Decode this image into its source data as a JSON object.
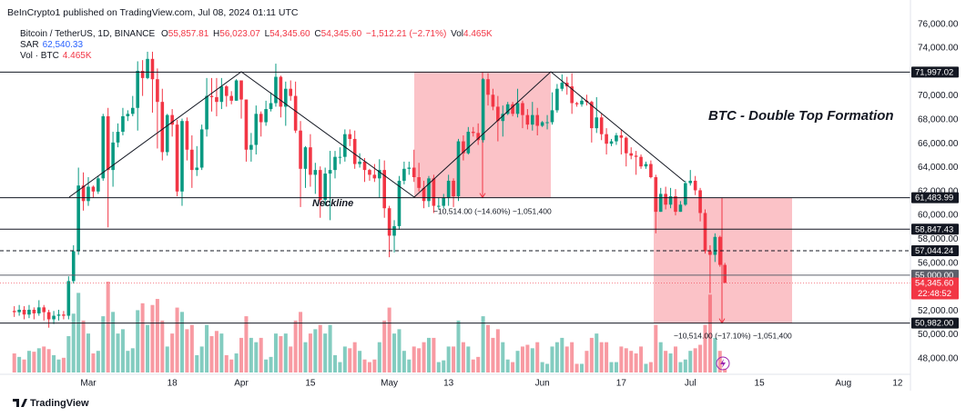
{
  "header": {
    "publisher": "BeInCrypto1 published on TradingView.com, Jul 08, 2024 01:11 UTC"
  },
  "legend": {
    "symbol": "Bitcoin / TetherUS, 1D, BINANCE",
    "items": [
      {
        "key": "O",
        "value": "55,857.81"
      },
      {
        "key": "H",
        "value": "56,023.07"
      },
      {
        "key": "L",
        "value": "54,345.60"
      },
      {
        "key": "C",
        "value": "54,345.60"
      }
    ],
    "change": "−1,512.21 (−2.71%)",
    "volume_key": "Vol",
    "volume_value": "4.465K",
    "sar_key": "SAR",
    "sar_value": "62,540.33",
    "vol_key": "Vol · BTC",
    "vol_value": "4.465K"
  },
  "annotations": {
    "pattern": "BTC - Double Top Formation",
    "neckline": "Neckline",
    "measure_1": "−10,514.00 (−14.60%) −1,051,400",
    "measure_2": "−10,514.00 (−17.10%) −1,051,400"
  },
  "footer": {
    "brand": "TradingView"
  },
  "chart_data": {
    "type": "candlestick",
    "up_color": "#089981",
    "down_color": "#f23645",
    "ylim": [
      46850,
      76510
    ],
    "yticks": [
      {
        "value": 76000,
        "label": "76,000.00"
      },
      {
        "value": 74000,
        "label": "74,000.00"
      },
      {
        "value": 70000,
        "label": "70,000.00"
      },
      {
        "value": 68000,
        "label": "68,000.00"
      },
      {
        "value": 66000,
        "label": "66,000.00"
      },
      {
        "value": 64000,
        "label": "64,000.00"
      },
      {
        "value": 62000,
        "label": "62,000.00"
      },
      {
        "value": 60000,
        "label": "60,000.00"
      },
      {
        "value": 58000,
        "label": "58,000.00"
      },
      {
        "value": 56000,
        "label": "56,000.00"
      },
      {
        "value": 52000,
        "label": "52,000.00"
      },
      {
        "value": 50000,
        "label": "50,000.00"
      },
      {
        "value": 48000,
        "label": "48,000.00"
      }
    ],
    "levels": [
      {
        "value": 71997.02,
        "label": "71,997.02",
        "line": "solid",
        "color": "#131722"
      },
      {
        "value": 61483.99,
        "label": "61,483.99",
        "line": "solid",
        "color": "#131722"
      },
      {
        "value": 58847.43,
        "label": "58,847.43",
        "line": "solid",
        "color": "#131722"
      },
      {
        "value": 57044.24,
        "label": "57,044.24",
        "line": "dashed",
        "color": "#131722"
      },
      {
        "value": 55000,
        "label": "55,000.00",
        "line": "solid",
        "color": "#5d606b"
      },
      {
        "value": 50982,
        "label": "50,982.00",
        "line": "solid",
        "color": "#131722"
      }
    ],
    "last": {
      "value": 54345.6,
      "label": "54,345.60",
      "countdown": "22:48:52",
      "color": "#f23645"
    },
    "categories": [
      null,
      null,
      null,
      null,
      null,
      null,
      null,
      null,
      null,
      null,
      null,
      null,
      null,
      null,
      null,
      "Mar",
      null,
      null,
      null,
      null,
      null,
      null,
      null,
      null,
      null,
      null,
      null,
      null,
      null,
      null,
      null,
      null,
      "18",
      null,
      null,
      null,
      null,
      null,
      null,
      null,
      null,
      null,
      null,
      null,
      null,
      null,
      "Apr",
      null,
      null,
      null,
      null,
      null,
      null,
      null,
      null,
      null,
      null,
      null,
      null,
      null,
      "15",
      null,
      null,
      null,
      null,
      null,
      null,
      null,
      null,
      null,
      null,
      null,
      null,
      null,
      null,
      null,
      "May",
      null,
      null,
      null,
      null,
      null,
      null,
      null,
      null,
      null,
      null,
      null,
      "13",
      null,
      null,
      null,
      null,
      null,
      null,
      null,
      null,
      null,
      null,
      null,
      null,
      null,
      null,
      null,
      null,
      null,
      null,
      "Jun",
      null,
      null,
      null,
      null,
      null,
      null,
      null,
      null,
      null,
      null,
      null,
      null,
      null,
      null,
      null,
      "17",
      null,
      null,
      null,
      null,
      null,
      null,
      null,
      null,
      null,
      null,
      null,
      null,
      null,
      "Jul",
      null,
      null,
      null,
      null,
      null,
      null,
      null,
      null,
      null,
      null,
      null,
      null,
      null,
      "15",
      null,
      null,
      null,
      null,
      null,
      null,
      null,
      null,
      null,
      null,
      null,
      null,
      null,
      null,
      null,
      null,
      "Aug",
      null,
      null,
      null,
      null,
      null,
      null,
      null,
      null,
      null,
      null,
      "12",
      null,
      null
    ],
    "open": [
      52000,
      51900,
      52100,
      51700,
      52100,
      51800,
      52300,
      51900,
      51300,
      51600,
      51700,
      51600,
      54500,
      57000,
      62500,
      61200,
      62400,
      62000,
      63100,
      68300,
      63800,
      66100,
      67000,
      68300,
      68500,
      69000,
      72100,
      71500,
      73100,
      71400,
      69500,
      65300,
      68400,
      67600,
      62000,
      67900,
      65500,
      63800,
      64000,
      67200,
      70000,
      69900,
      69500,
      70800,
      70000,
      69600,
      71300,
      69700,
      65500,
      65900,
      68500,
      67800,
      68900,
      69400,
      71600,
      69100,
      70600,
      70000,
      67100,
      63900,
      65700,
      63400,
      63800,
      61300,
      63500,
      63800,
      64900,
      64900,
      66800,
      66400,
      64300,
      64500,
      63800,
      63400,
      63100,
      63800,
      60600,
      58300,
      59100,
      62900,
      63900,
      64000,
      63200,
      62300,
      61200,
      63100,
      60800,
      60800,
      61500,
      62900,
      61600,
      66200,
      65200,
      67000,
      66900,
      66300,
      71400,
      70100,
      69100,
      67900,
      68500,
      69300,
      68500,
      69400,
      68400,
      67600,
      68400,
      67500,
      67800,
      67800,
      68800,
      70600,
      71100,
      70800,
      69400,
      69300,
      69600,
      69500,
      67300,
      68200,
      66800,
      66000,
      66200,
      66700,
      66500,
      65200,
      65000,
      64900,
      64100,
      64300,
      63200,
      60300,
      61800,
      60900,
      61600,
      60300,
      60900,
      62700,
      62900,
      62100,
      60200,
      57000,
      56700,
      58200,
      55857.81,
      null,
      null,
      null,
      null,
      null,
      null,
      null,
      null,
      null,
      null,
      null,
      null,
      null,
      null,
      null,
      null,
      null,
      null,
      null,
      null,
      null,
      null,
      null,
      null,
      null,
      null,
      null,
      null,
      null,
      null,
      null,
      null,
      null,
      null,
      null,
      null,
      null
    ],
    "high": [
      52400,
      52500,
      52400,
      52500,
      52300,
      52900,
      52500,
      52100,
      52000,
      52100,
      52000,
      54900,
      57500,
      64000,
      63600,
      63200,
      62500,
      63300,
      68500,
      69000,
      67000,
      67700,
      69000,
      68800,
      70000,
      72900,
      73000,
      73700,
      73700,
      72300,
      70600,
      68500,
      68900,
      68000,
      68100,
      68200,
      66700,
      65800,
      67600,
      71500,
      71500,
      71500,
      71500,
      70900,
      70400,
      71400,
      71300,
      69700,
      66900,
      69200,
      68700,
      69600,
      70300,
      72700,
      71700,
      71200,
      71300,
      71200,
      67900,
      65800,
      66800,
      64400,
      64100,
      64000,
      65400,
      65400,
      65700,
      67200,
      67200,
      67100,
      65200,
      64800,
      63900,
      64300,
      64700,
      64600,
      60800,
      59600,
      63300,
      64500,
      64500,
      65500,
      64400,
      62900,
      63300,
      63400,
      61500,
      61800,
      63400,
      63100,
      66400,
      66700,
      67400,
      67400,
      67700,
      71500,
      71900,
      70600,
      70000,
      69200,
      69500,
      69500,
      70600,
      69600,
      68900,
      69500,
      69000,
      67900,
      68400,
      70300,
      71000,
      71800,
      71600,
      71900,
      69500,
      69900,
      70100,
      69600,
      69900,
      68500,
      67300,
      66400,
      66900,
      67200,
      66600,
      65700,
      65400,
      65100,
      64500,
      64600,
      63400,
      62300,
      62400,
      62300,
      62200,
      61200,
      62900,
      63800,
      63300,
      62300,
      60500,
      57500,
      58500,
      58300,
      56023.07,
      null,
      null,
      null,
      null,
      null,
      null,
      null,
      null,
      null,
      null,
      null,
      null,
      null,
      null,
      null,
      null,
      null,
      null,
      null,
      null,
      null,
      null,
      null,
      null,
      null,
      null,
      null,
      null,
      null,
      null,
      null,
      null,
      null,
      null,
      null,
      null,
      null
    ],
    "low": [
      51500,
      51600,
      51300,
      51400,
      51300,
      51600,
      51200,
      50600,
      50900,
      51200,
      51300,
      51300,
      54300,
      56700,
      60400,
      60800,
      61500,
      61800,
      62900,
      59000,
      62400,
      65700,
      66700,
      67900,
      68300,
      67100,
      70000,
      71400,
      68600,
      65600,
      64600,
      65000,
      66600,
      61600,
      60800,
      64600,
      62300,
      63300,
      63800,
      66600,
      68700,
      68300,
      68900,
      69100,
      69300,
      69600,
      68100,
      64500,
      64500,
      65100,
      66600,
      67500,
      68700,
      69100,
      68200,
      67500,
      69600,
      66900,
      60700,
      62300,
      62400,
      61800,
      59800,
      60800,
      59600,
      63100,
      64300,
      64500,
      65800,
      63900,
      64000,
      62800,
      62900,
      62800,
      61500,
      59800,
      56500,
      56900,
      58800,
      62600,
      63400,
      62800,
      62000,
      60600,
      60700,
      60200,
      60500,
      60600,
      60800,
      60700,
      61200,
      64600,
      65100,
      66600,
      65900,
      66100,
      69200,
      68800,
      66200,
      66600,
      68400,
      68300,
      68200,
      67300,
      67200,
      67100,
      66700,
      67400,
      67200,
      67600,
      68600,
      70400,
      70100,
      68500,
      69100,
      69100,
      69200,
      66100,
      66900,
      66300,
      65100,
      65800,
      65900,
      65100,
      64100,
      64700,
      63400,
      63900,
      63900,
      63100,
      58500,
      60300,
      60500,
      60600,
      60000,
      60300,
      60800,
      62500,
      61700,
      59500,
      56800,
      53500,
      56100,
      55700,
      54345.6,
      null,
      null,
      null,
      null,
      null,
      null,
      null,
      null,
      null,
      null,
      null,
      null,
      null,
      null,
      null,
      null,
      null,
      null,
      null,
      null,
      null,
      null,
      null,
      null,
      null,
      null,
      null,
      null,
      null,
      null,
      null,
      null,
      null,
      null,
      null,
      null,
      null
    ],
    "close": [
      51900,
      52100,
      51700,
      52100,
      51800,
      52300,
      51900,
      51300,
      51600,
      51700,
      51600,
      54500,
      57000,
      62500,
      61200,
      62400,
      62000,
      63100,
      68300,
      63800,
      66100,
      67000,
      68300,
      68500,
      69000,
      72100,
      71500,
      73100,
      71400,
      69500,
      65300,
      68400,
      67600,
      62000,
      67900,
      65500,
      63800,
      64000,
      67200,
      70000,
      69900,
      69500,
      70800,
      70000,
      69600,
      71300,
      69700,
      65500,
      65900,
      68500,
      67800,
      68900,
      69400,
      71600,
      69100,
      70600,
      70000,
      67100,
      63900,
      65700,
      63400,
      63800,
      61300,
      63500,
      63800,
      64900,
      64900,
      66800,
      66400,
      64300,
      64500,
      63800,
      63400,
      63100,
      63800,
      60600,
      58300,
      59100,
      62900,
      63900,
      64000,
      63200,
      62300,
      61200,
      63100,
      60800,
      60800,
      61500,
      62900,
      61600,
      66200,
      65200,
      67000,
      66900,
      66300,
      71400,
      70100,
      69100,
      67900,
      68500,
      69300,
      68500,
      69400,
      68400,
      67600,
      68400,
      67500,
      67800,
      67800,
      68800,
      70600,
      71100,
      70800,
      69400,
      69300,
      69600,
      69500,
      67300,
      68200,
      66800,
      66000,
      66200,
      66700,
      66500,
      65200,
      65000,
      64900,
      64100,
      64300,
      63200,
      60300,
      61800,
      60900,
      61600,
      60300,
      60900,
      62700,
      62900,
      62100,
      60200,
      57000,
      56700,
      58200,
      55857.81,
      54345.6,
      null,
      null,
      null,
      null,
      null,
      null,
      null,
      null,
      null,
      null,
      null,
      null,
      null,
      null,
      null,
      null,
      null,
      null,
      null,
      null,
      null,
      null,
      null,
      null,
      null,
      null,
      null,
      null,
      null,
      null,
      null,
      null,
      null,
      null,
      null,
      null,
      null
    ],
    "volume": [
      22000,
      18000,
      15000,
      25000,
      24000,
      28000,
      30000,
      27000,
      20000,
      15000,
      17000,
      42000,
      68000,
      92000,
      60000,
      45000,
      22000,
      25000,
      65000,
      105000,
      70000,
      45000,
      50000,
      25000,
      28000,
      72000,
      80000,
      55000,
      78000,
      85000,
      60000,
      30000,
      45000,
      75000,
      70000,
      50000,
      55000,
      20000,
      30000,
      55000,
      42000,
      48000,
      45000,
      20000,
      15000,
      22000,
      40000,
      65000,
      40000,
      35000,
      40000,
      15000,
      18000,
      45000,
      42000,
      45000,
      30000,
      60000,
      70000,
      35000,
      45000,
      50000,
      55000,
      45000,
      55000,
      20000,
      12000,
      30000,
      28000,
      35000,
      25000,
      15000,
      12000,
      15000,
      35000,
      60000,
      75000,
      45000,
      50000,
      25000,
      15000,
      30000,
      28000,
      35000,
      40000,
      40000,
      12000,
      14000,
      30000,
      30000,
      60000,
      35000,
      30000,
      15000,
      18000,
      65000,
      55000,
      40000,
      50000,
      35000,
      15000,
      12000,
      25000,
      30000,
      32000,
      28000,
      35000,
      12000,
      10000,
      30000,
      35000,
      40000,
      30000,
      35000,
      10000,
      10000,
      25000,
      40000,
      45000,
      35000,
      35000,
      12000,
      12000,
      30000,
      28000,
      25000,
      22000,
      30000,
      10000,
      12000,
      55000,
      35000,
      25000,
      22000,
      30000,
      12000,
      15000,
      25000,
      28000,
      32000,
      55000,
      90000,
      40000,
      25000,
      4465,
      null,
      null,
      null,
      null,
      null,
      null,
      null,
      null,
      null,
      null,
      null,
      null,
      null,
      null,
      null,
      null,
      null,
      null,
      null,
      null,
      null,
      null,
      null,
      null,
      null,
      null,
      null,
      null,
      null,
      null,
      null,
      null,
      null,
      null,
      null,
      null,
      null
    ]
  }
}
